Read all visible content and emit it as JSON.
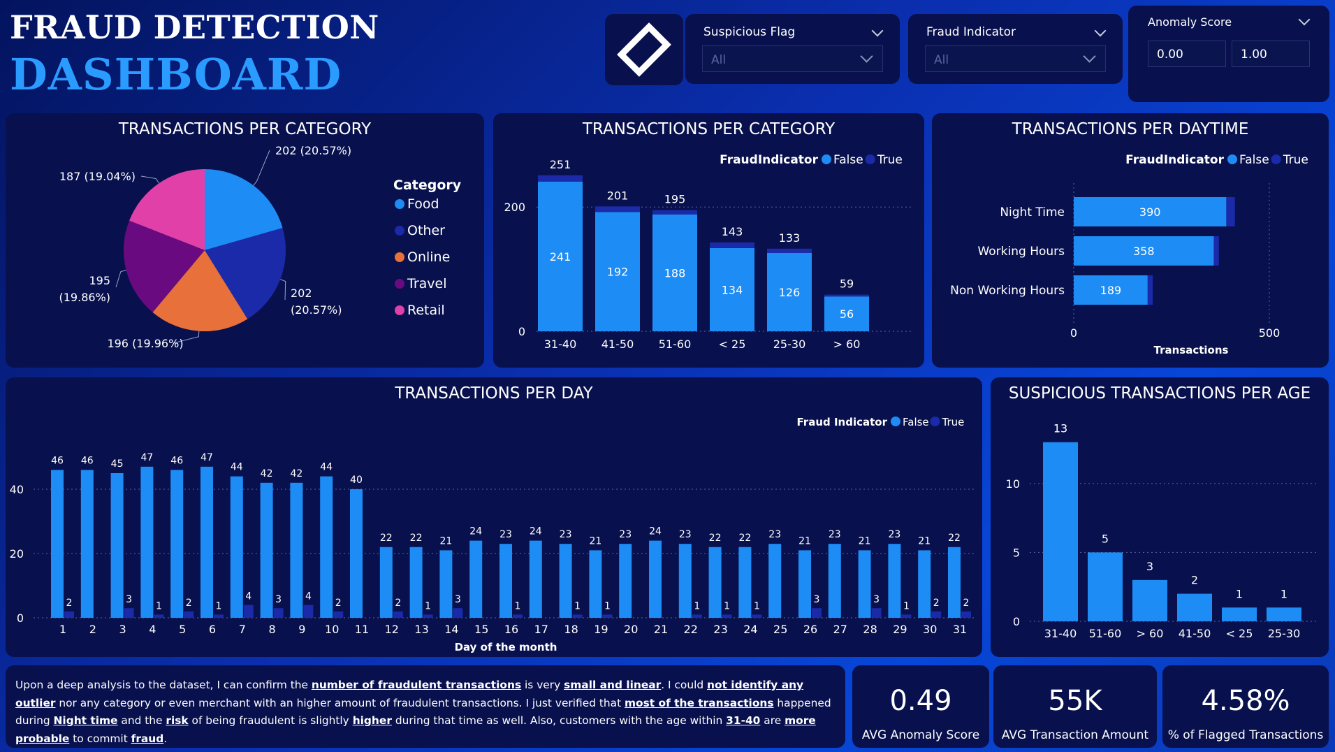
{
  "header": {
    "title_line1": "FRAUD DETECTION",
    "title_line2": "DASHBOARD"
  },
  "logo": {
    "icon": "diamond-logo-icon"
  },
  "filters": {
    "suspicious": {
      "label": "Suspicious Flag",
      "value": "All"
    },
    "fraud": {
      "label": "Fraud Indicator",
      "value": "All"
    },
    "anomaly": {
      "label": "Anomaly Score",
      "min": "0.00",
      "max": "1.00"
    }
  },
  "colors": {
    "food": "#1e8cf5",
    "other": "#1a2aa8",
    "online": "#e8703a",
    "travel": "#6a0a80",
    "retail": "#e040a8",
    "false": "#1e8cf5",
    "true": "#1a2aa8"
  },
  "charts": {
    "pie_title": "TRANSACTIONS PER CATEGORY",
    "pie_legend_title": "Category",
    "cat_title": "TRANSACTIONS PER CATEGORY",
    "cat_legend_label": "FraudIndicator",
    "daytime_title": "TRANSACTIONS PER DAYTIME",
    "daytime_legend_label": "FraudIndicator",
    "daytime_xlabel": "Transactions",
    "day_title": "TRANSACTIONS PER DAY",
    "day_legend_label": "Fraud Indicator",
    "day_xlabel": "Day of the month",
    "age_title": "SUSPICIOUS TRANSACTIONS PER AGE",
    "legend_false": "False",
    "legend_true": "True"
  },
  "chart_data": [
    {
      "id": "pie",
      "type": "pie",
      "legend_title": "Category",
      "categories": [
        "Food",
        "Other",
        "Online",
        "Travel",
        "Retail"
      ],
      "values": [
        202,
        202,
        196,
        195,
        187
      ],
      "labels": [
        "202 (20.57%)",
        "202 (20.57%)",
        "196 (19.96%)",
        "195 (19.86%)",
        "187 (19.04%)"
      ]
    },
    {
      "id": "category",
      "type": "bar",
      "stacked": true,
      "categories": [
        "31-40",
        "41-50",
        "51-60",
        "< 25",
        "25-30",
        "> 60"
      ],
      "series": [
        {
          "name": "False",
          "values": [
            241,
            192,
            188,
            134,
            126,
            56
          ]
        },
        {
          "name": "True",
          "values": [
            10,
            9,
            7,
            9,
            7,
            3
          ]
        }
      ],
      "totals": [
        251,
        201,
        195,
        143,
        133,
        59
      ],
      "ylim": [
        0,
        270
      ],
      "yticks": [
        0,
        200
      ]
    },
    {
      "id": "daytime",
      "type": "bar",
      "orientation": "horizontal",
      "stacked": true,
      "categories": [
        "Night Time",
        "Working Hours",
        "Non Working Hours"
      ],
      "series": [
        {
          "name": "False",
          "values": [
            390,
            358,
            189
          ]
        },
        {
          "name": "True",
          "values": [
            22,
            13,
            13
          ]
        }
      ],
      "xlabel": "Transactions",
      "xlim": [
        0,
        500
      ],
      "xticks": [
        0,
        500
      ]
    },
    {
      "id": "day",
      "type": "bar",
      "categories": [
        "1",
        "2",
        "3",
        "4",
        "5",
        "6",
        "7",
        "8",
        "9",
        "10",
        "11",
        "12",
        "13",
        "14",
        "15",
        "16",
        "17",
        "18",
        "19",
        "20",
        "21",
        "22",
        "23",
        "24",
        "25",
        "26",
        "27",
        "28",
        "29",
        "30",
        "31"
      ],
      "series": [
        {
          "name": "False",
          "values": [
            46,
            46,
            45,
            47,
            46,
            47,
            44,
            42,
            42,
            44,
            40,
            22,
            22,
            21,
            24,
            23,
            24,
            23,
            21,
            23,
            24,
            23,
            22,
            22,
            23,
            21,
            23,
            21,
            23,
            21,
            22
          ]
        },
        {
          "name": "True",
          "values": [
            2,
            null,
            3,
            1,
            2,
            1,
            4,
            3,
            4,
            2,
            null,
            2,
            1,
            3,
            null,
            1,
            null,
            1,
            1,
            null,
            null,
            1,
            1,
            1,
            null,
            3,
            null,
            3,
            1,
            2,
            2
          ]
        }
      ],
      "xlabel": "Day of the month",
      "ylim": [
        0,
        50
      ],
      "yticks": [
        0,
        20,
        40
      ]
    },
    {
      "id": "age",
      "type": "bar",
      "categories": [
        "31-40",
        "51-60",
        "> 60",
        "41-50",
        "< 25",
        "25-30"
      ],
      "values": [
        13,
        5,
        3,
        2,
        1,
        1
      ],
      "ylim": [
        0,
        14
      ],
      "yticks": [
        0,
        5,
        10
      ]
    }
  ],
  "analysis": {
    "p1": "Upon a deep analysis to the dataset, I can confirm the ",
    "b1": "number of fraudulent transactions",
    "p2": " is very ",
    "b2": "small and linear",
    "p3": ". I could ",
    "b3": "not identify any outlier",
    "p4": " nor any category or even merchant with an higher amount of fraudulent transactions. I just verified that ",
    "b4": "most of the transactions",
    "p5": " happened during ",
    "b5": "Night time",
    "p6": " and the ",
    "b6": "risk",
    "p7": " of being fraudulent is slightly ",
    "b7": "higher",
    "p8": " during that time as well. Also, customers with the age within ",
    "b8": "31-40",
    "p9": " are ",
    "b9": "more probable",
    "p10": " to commit ",
    "b10": "fraud",
    "p11": "."
  },
  "kpis": [
    {
      "value": "0.49",
      "label": "AVG Anomaly Score"
    },
    {
      "value": "55K",
      "label": "AVG Transaction Amount"
    },
    {
      "value": "4.58%",
      "label": "% of Flagged Transactions"
    }
  ]
}
